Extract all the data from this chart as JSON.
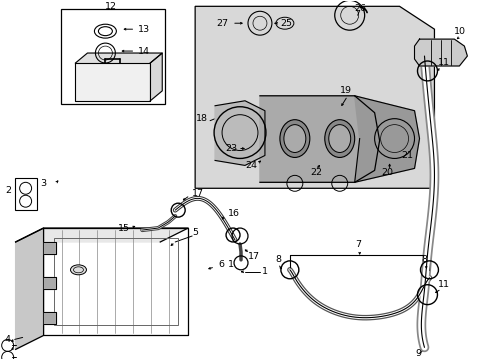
{
  "bg_color": "#ffffff",
  "line_color": "#000000",
  "shade_color": "#e0e0e0",
  "fig_width": 4.89,
  "fig_height": 3.6,
  "dpi": 100
}
